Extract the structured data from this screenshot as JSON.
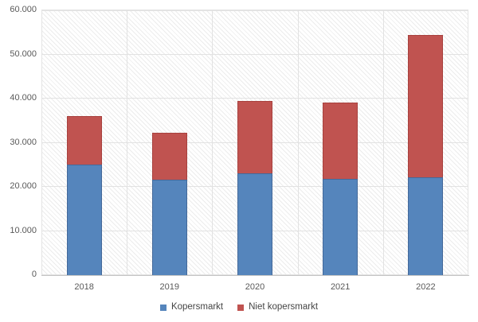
{
  "chart_data": {
    "type": "bar",
    "stacked": true,
    "title": "",
    "xlabel": "",
    "ylabel": "",
    "categories": [
      "2018",
      "2019",
      "2020",
      "2021",
      "2022"
    ],
    "series": [
      {
        "name": "Kopersmarkt",
        "color": "#5585bc",
        "border_color": "#44699a",
        "values": [
          25000,
          21600,
          23100,
          21800,
          22100
        ]
      },
      {
        "name": "Niet kopersmarkt",
        "color": "#c05350",
        "border_color": "#a8413e",
        "values": [
          11000,
          10700,
          16400,
          17300,
          32400
        ]
      }
    ],
    "totals": [
      36000,
      32300,
      39500,
      39100,
      54500
    ],
    "ylim": [
      0,
      60000
    ],
    "ytick_interval": 10000,
    "yticks": [
      {
        "value": 0,
        "label": "0"
      },
      {
        "value": 10000,
        "label": "10.000"
      },
      {
        "value": 20000,
        "label": "20.000"
      },
      {
        "value": 30000,
        "label": "30.000"
      },
      {
        "value": 40000,
        "label": "40.000"
      },
      {
        "value": 50000,
        "label": "50.000"
      },
      {
        "value": 60000,
        "label": "60.000"
      }
    ],
    "grid": "horizontal-and-vertical-category-separators",
    "plot_background": "diagonal-hatch-pattern",
    "legend_position": "bottom",
    "colors": {
      "axis_label": "#595959",
      "legend_label": "#454545",
      "gridline": "#e2e2e2",
      "axis_line": "#c3c3c3",
      "hatch_line": "#ececec"
    }
  }
}
